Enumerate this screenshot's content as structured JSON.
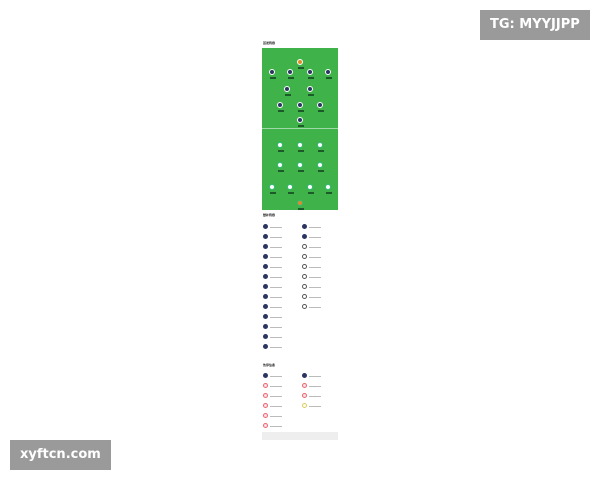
{
  "watermarks": {
    "top": "TG: MYYJJPP",
    "bottom": "xyftcn.com"
  },
  "sections": {
    "lineup": "首发阵容",
    "subs": "替补阵容",
    "injuries": "伤停信息"
  },
  "colors": {
    "pitch": "#3fb24a",
    "home": "#2b3560",
    "away": "#ffffff",
    "keeper": "#e08a2a"
  },
  "home_rows": [
    [
      0.5
    ],
    [
      0.13,
      0.37,
      0.63,
      0.87
    ],
    [
      0.33,
      0.63
    ],
    [
      0.24,
      0.5,
      0.76
    ],
    [
      0.5
    ]
  ],
  "away_rows": [
    [
      0.24,
      0.5,
      0.76
    ],
    [
      0.24,
      0.5,
      0.76
    ],
    [
      0.13,
      0.37,
      0.63,
      0.87
    ],
    [
      0.5
    ]
  ],
  "subs": {
    "left_count": 13,
    "right_count": 9
  },
  "injuries": {
    "left_count": 6,
    "right_count": 4
  }
}
